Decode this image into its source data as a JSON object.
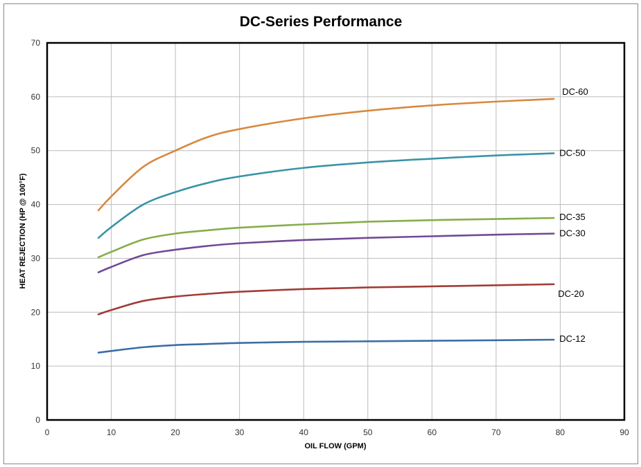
{
  "chart_data": {
    "type": "line",
    "title": "DC-Series Performance",
    "xlabel": "OIL FLOW (GPM)",
    "ylabel": "HEAT REJECTION (HP @ 100°F)",
    "xlim": [
      0,
      90
    ],
    "ylim": [
      0,
      70
    ],
    "xticks": [
      0,
      10,
      20,
      30,
      40,
      50,
      60,
      70,
      80,
      90
    ],
    "yticks": [
      0,
      10,
      20,
      30,
      40,
      50,
      60,
      70
    ],
    "grid": true,
    "legend": "inline-right",
    "x": [
      8,
      10,
      15,
      20,
      25,
      30,
      40,
      50,
      60,
      70,
      79
    ],
    "series": [
      {
        "name": "DC-60",
        "color": "#d8883e",
        "values": [
          38.9,
          41.5,
          47.0,
          50.0,
          52.5,
          54.0,
          56.0,
          57.4,
          58.4,
          59.1,
          59.6
        ]
      },
      {
        "name": "DC-50",
        "color": "#3a93a8",
        "values": [
          33.8,
          35.8,
          40.0,
          42.3,
          44.0,
          45.2,
          46.8,
          47.8,
          48.5,
          49.1,
          49.5
        ]
      },
      {
        "name": "DC-35",
        "color": "#86ad48",
        "values": [
          30.2,
          31.2,
          33.5,
          34.6,
          35.2,
          35.7,
          36.3,
          36.8,
          37.1,
          37.3,
          37.5
        ]
      },
      {
        "name": "DC-30",
        "color": "#6f4a94",
        "values": [
          27.4,
          28.4,
          30.6,
          31.6,
          32.3,
          32.8,
          33.4,
          33.8,
          34.1,
          34.4,
          34.6
        ]
      },
      {
        "name": "DC-20",
        "color": "#a03c36",
        "values": [
          19.6,
          20.4,
          22.1,
          22.9,
          23.4,
          23.8,
          24.3,
          24.6,
          24.8,
          25.0,
          25.2
        ]
      },
      {
        "name": "DC-12",
        "color": "#3a6ea5",
        "values": [
          12.5,
          12.8,
          13.5,
          13.9,
          14.1,
          14.3,
          14.5,
          14.6,
          14.7,
          14.8,
          14.9
        ]
      }
    ]
  }
}
